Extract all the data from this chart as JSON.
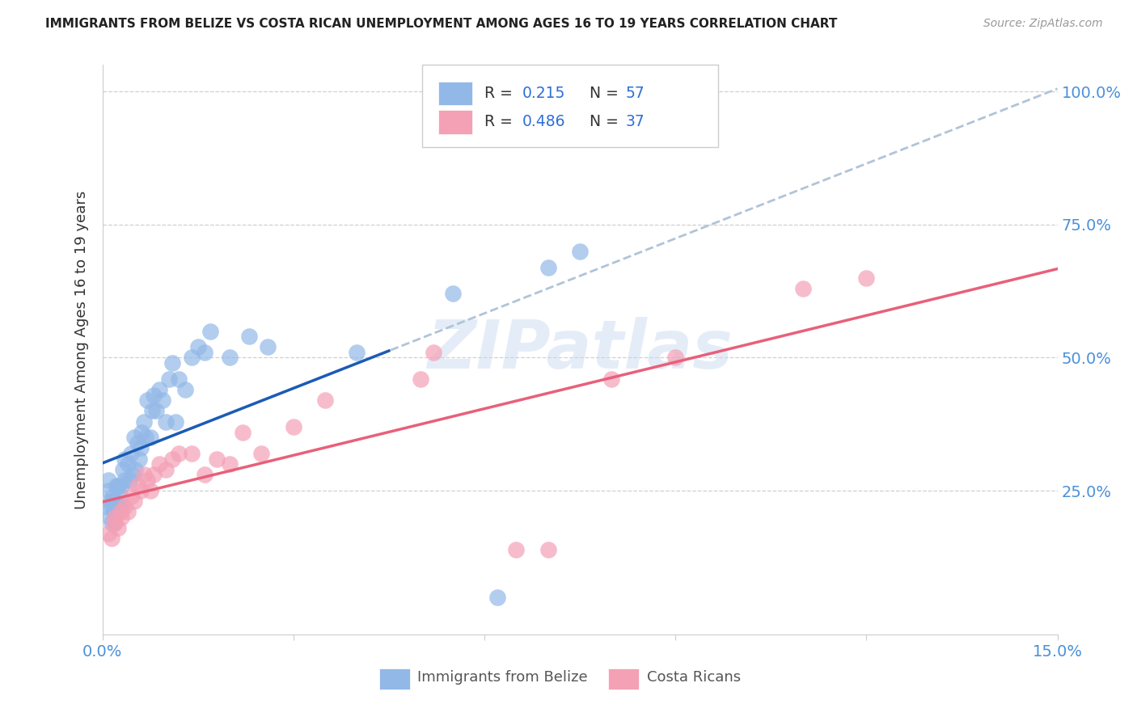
{
  "title": "IMMIGRANTS FROM BELIZE VS COSTA RICAN UNEMPLOYMENT AMONG AGES 16 TO 19 YEARS CORRELATION CHART",
  "source": "Source: ZipAtlas.com",
  "ylabel": "Unemployment Among Ages 16 to 19 years",
  "xlim": [
    0.0,
    0.15
  ],
  "ylim": [
    -0.02,
    1.05
  ],
  "legend1_R": "0.215",
  "legend1_N": "57",
  "legend2_R": "0.486",
  "legend2_N": "37",
  "blue_color": "#92B8E8",
  "pink_color": "#F4A0B5",
  "blue_line_color": "#1C5BB5",
  "pink_line_color": "#E8607A",
  "dashed_line_color": "#B0C4D8",
  "watermark": "ZIPatlas",
  "grid_color": "#D0D0D0",
  "blue_dots_x": [
    0.0008,
    0.001,
    0.001,
    0.0012,
    0.0013,
    0.0015,
    0.0015,
    0.0016,
    0.0018,
    0.002,
    0.002,
    0.0022,
    0.0025,
    0.0025,
    0.0028,
    0.003,
    0.003,
    0.0032,
    0.0035,
    0.0035,
    0.004,
    0.0042,
    0.0045,
    0.0048,
    0.005,
    0.0052,
    0.0055,
    0.0058,
    0.006,
    0.0062,
    0.0065,
    0.0068,
    0.007,
    0.0075,
    0.0078,
    0.008,
    0.0085,
    0.009,
    0.0095,
    0.01,
    0.0105,
    0.011,
    0.0115,
    0.012,
    0.013,
    0.014,
    0.015,
    0.016,
    0.017,
    0.02,
    0.023,
    0.026,
    0.04,
    0.055,
    0.062,
    0.07,
    0.075
  ],
  "blue_dots_y": [
    0.22,
    0.25,
    0.27,
    0.2,
    0.23,
    0.19,
    0.22,
    0.24,
    0.21,
    0.19,
    0.23,
    0.26,
    0.22,
    0.26,
    0.24,
    0.22,
    0.26,
    0.29,
    0.27,
    0.31,
    0.3,
    0.27,
    0.32,
    0.28,
    0.35,
    0.29,
    0.34,
    0.31,
    0.33,
    0.36,
    0.38,
    0.35,
    0.42,
    0.35,
    0.4,
    0.43,
    0.4,
    0.44,
    0.42,
    0.38,
    0.46,
    0.49,
    0.38,
    0.46,
    0.44,
    0.5,
    0.52,
    0.51,
    0.55,
    0.5,
    0.54,
    0.52,
    0.51,
    0.62,
    0.05,
    0.67,
    0.7
  ],
  "pink_dots_x": [
    0.001,
    0.0015,
    0.0018,
    0.002,
    0.0025,
    0.0028,
    0.003,
    0.0035,
    0.004,
    0.0045,
    0.005,
    0.0055,
    0.006,
    0.0065,
    0.007,
    0.0075,
    0.008,
    0.009,
    0.01,
    0.011,
    0.012,
    0.014,
    0.016,
    0.018,
    0.02,
    0.022,
    0.025,
    0.03,
    0.035,
    0.05,
    0.052,
    0.065,
    0.07,
    0.08,
    0.09,
    0.11,
    0.12
  ],
  "pink_dots_y": [
    0.17,
    0.16,
    0.19,
    0.2,
    0.18,
    0.21,
    0.2,
    0.22,
    0.21,
    0.24,
    0.23,
    0.26,
    0.25,
    0.28,
    0.27,
    0.25,
    0.28,
    0.3,
    0.29,
    0.31,
    0.32,
    0.32,
    0.28,
    0.31,
    0.3,
    0.36,
    0.32,
    0.37,
    0.42,
    0.46,
    0.51,
    0.14,
    0.14,
    0.46,
    0.5,
    0.63,
    0.65
  ]
}
